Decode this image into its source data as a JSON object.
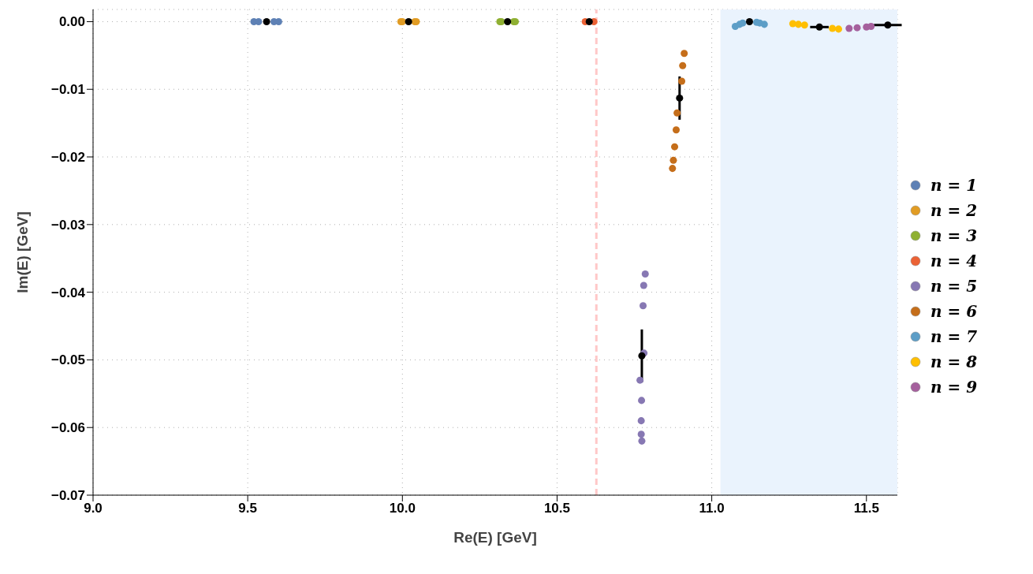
{
  "chart_data": {
    "type": "scatter",
    "xlabel": "Re(E) [GeV]",
    "ylabel": "Im(E) [GeV]",
    "xlim": [
      9.0,
      11.6
    ],
    "ylim": [
      -0.07,
      0.0018
    ],
    "xticks": [
      {
        "value": 9,
        "label": "9.0"
      },
      9.5,
      {
        "value": 10,
        "label": "10.0"
      },
      10.5,
      {
        "value": 11,
        "label": "11.0"
      },
      11.5
    ],
    "yticks": [
      {
        "value": 0,
        "label": "0.00"
      },
      {
        "value": -0.01,
        "label": "−0.01"
      },
      {
        "value": -0.02,
        "label": "−0.02"
      },
      {
        "value": -0.03,
        "label": "−0.03"
      },
      {
        "value": -0.04,
        "label": "−0.04"
      },
      {
        "value": -0.05,
        "label": "−0.05"
      },
      {
        "value": -0.06,
        "label": "−0.06"
      },
      {
        "value": -0.07,
        "label": "−0.07"
      }
    ],
    "grid": true,
    "legend": "right",
    "marker": "circle",
    "ref_lines": [
      {
        "axis": "x",
        "value": 10.627,
        "color": "#ffc8c8",
        "line_style": "dashed"
      }
    ],
    "bands": [
      {
        "axis": "x",
        "from": 11.028,
        "to": 11.6,
        "color": "#eaf3fd"
      }
    ],
    "series": [
      {
        "name": "n = 1",
        "color": "#5e81b5",
        "x": [
          9.52,
          9.535,
          9.585,
          9.6
        ],
        "values": [
          0,
          0,
          0,
          0
        ]
      },
      {
        "name": "n = 2",
        "color": "#e19c24",
        "x": [
          9.995,
          10.0,
          10.04,
          10.045
        ],
        "values": [
          0,
          0,
          0,
          0
        ]
      },
      {
        "name": "n = 3",
        "color": "#8fb032",
        "x": [
          10.315,
          10.32,
          10.36,
          10.365
        ],
        "values": [
          0,
          0,
          0,
          0
        ]
      },
      {
        "name": "n = 4",
        "color": "#eb6235",
        "x": [
          10.591,
          10.619
        ],
        "values": [
          0,
          0
        ]
      },
      {
        "name": "n = 5",
        "color": "#8778b3",
        "x": [
          10.785,
          10.78,
          10.778,
          10.781,
          10.768,
          10.773,
          10.772,
          10.772,
          10.774
        ],
        "values": [
          -0.0373,
          -0.039,
          -0.042,
          -0.049,
          -0.053,
          -0.056,
          -0.059,
          -0.061,
          -0.062
        ]
      },
      {
        "name": "n = 6",
        "color": "#c56e1a",
        "x": [
          10.911,
          10.906,
          10.903,
          10.888,
          10.885,
          10.88,
          10.876,
          10.873
        ],
        "values": [
          -0.0047,
          -0.0065,
          -0.0088,
          -0.0135,
          -0.016,
          -0.0185,
          -0.0205,
          -0.0217
        ]
      },
      {
        "name": "n = 7",
        "color": "#5d9ec7",
        "x": [
          11.076,
          11.09,
          11.1,
          11.145,
          11.155,
          11.17
        ],
        "values": [
          -0.0007,
          -0.0004,
          -0.0002,
          -0.0001,
          -0.0002,
          -0.0004
        ]
      },
      {
        "name": "n = 8",
        "color": "#ffbf00",
        "x": [
          11.262,
          11.28,
          11.3,
          11.39,
          11.41
        ],
        "values": [
          -0.0003,
          -0.0004,
          -0.0005,
          -0.001,
          -0.0011
        ]
      },
      {
        "name": "n = 9",
        "color": "#a5609d",
        "x": [
          11.444,
          11.47,
          11.5,
          11.515
        ],
        "values": [
          -0.001,
          -0.0009,
          -0.0008,
          -0.0007
        ]
      },
      {
        "color": "#000000",
        "x": [
          9.561,
          10.02,
          10.34,
          10.604,
          10.774,
          10.896,
          11.122,
          11.348,
          11.569
        ],
        "values": [
          0,
          0,
          0,
          0,
          -0.0494,
          -0.0113,
          0,
          -0.0008,
          -0.0005
        ],
        "errors": [
          null,
          null,
          null,
          null,
          0.0039,
          0.0032,
          null,
          null,
          null
        ],
        "xerrors": [
          null,
          null,
          null,
          null,
          null,
          null,
          null,
          0.03,
          0.045
        ]
      }
    ]
  }
}
